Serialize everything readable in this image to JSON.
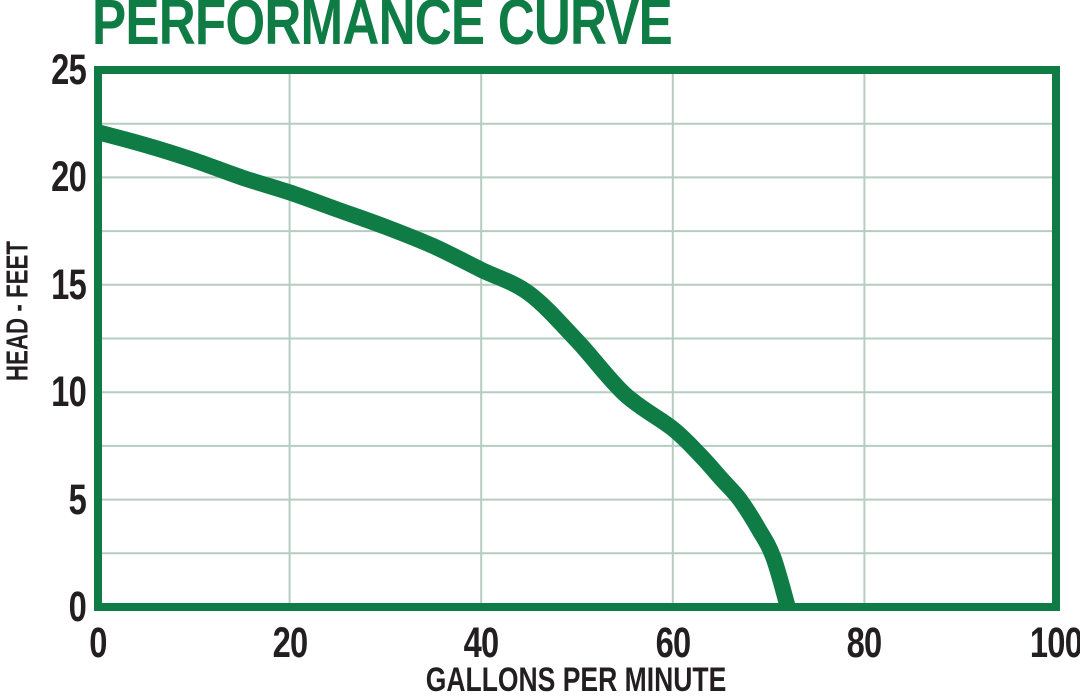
{
  "chart_data": {
    "type": "line",
    "title": "PERFORMANCE CURVE",
    "xlabel": "GALLONS PER MINUTE",
    "ylabel": "HEAD - FEET",
    "xlim": [
      0,
      100
    ],
    "ylim": [
      0,
      25
    ],
    "x_ticks": [
      0,
      20,
      40,
      60,
      80,
      100
    ],
    "y_ticks": [
      0,
      5,
      10,
      15,
      20,
      25
    ],
    "x_grid_interval": 20,
    "y_grid_interval": 2.5,
    "grid": true,
    "legend": false,
    "series": [
      {
        "x": [
          0,
          5,
          10,
          15,
          20,
          25,
          30,
          35,
          40,
          45,
          50,
          55,
          60,
          63,
          65,
          67,
          69,
          70.5,
          72
        ],
        "y": [
          22.1,
          21.5,
          20.8,
          20.0,
          19.3,
          18.5,
          17.7,
          16.8,
          15.7,
          14.6,
          12.4,
          9.9,
          8.3,
          7.0,
          6.0,
          5.0,
          3.6,
          2.3,
          0
        ]
      }
    ],
    "colors": {
      "curve": "#0e7c44",
      "border": "#0e7c44",
      "grid": "#b5cdc1",
      "title": "#0e7c44",
      "text": "#231f20",
      "background": "#ffffff"
    }
  }
}
